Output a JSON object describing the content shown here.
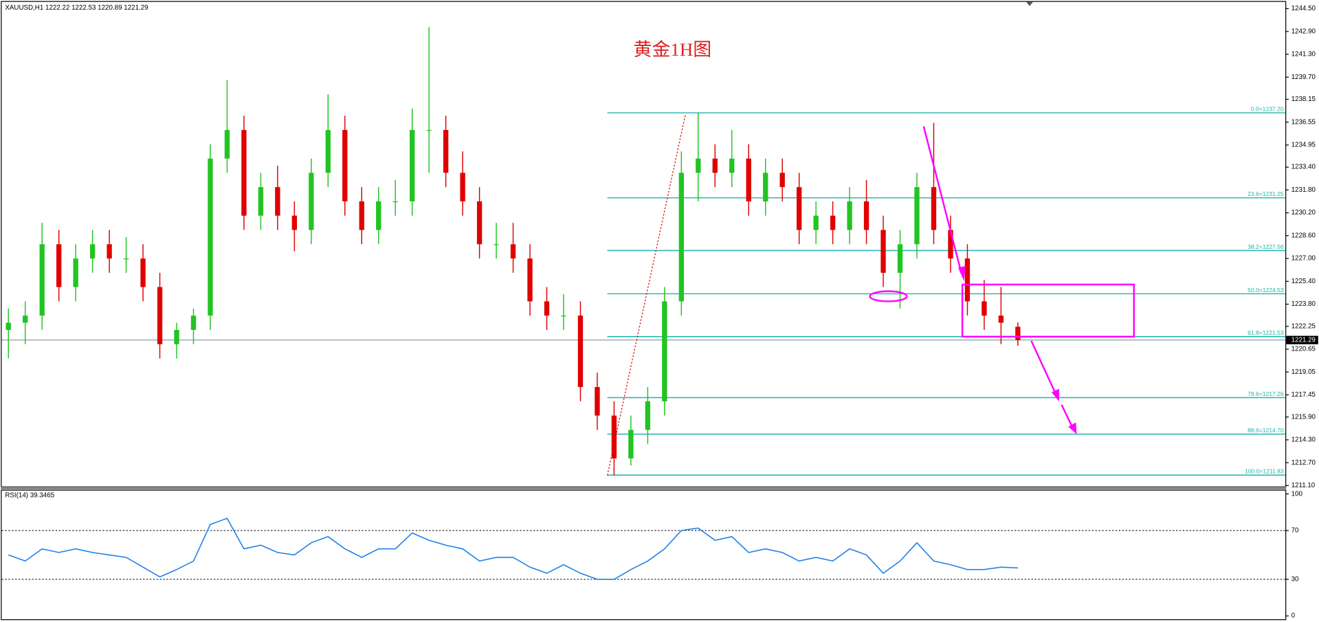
{
  "chart_data": [
    {
      "type": "candlestick",
      "header": "XAUUSD,H1  1222.22 1222.53 1220.89 1221.29",
      "title": "黄金1H图",
      "up_color": "#22c422",
      "down_color": "#e00000",
      "open": [
        1222.0,
        1222.5,
        1223,
        1228,
        1225,
        1227,
        1228,
        1227,
        1227,
        1225,
        1221,
        1222,
        1223,
        1234,
        1236,
        1230,
        1232,
        1230,
        1229,
        1233,
        1236,
        1231,
        1229,
        1231,
        1231,
        1236,
        1236,
        1233,
        1231,
        1228,
        1228,
        1227,
        1224,
        1223,
        1223,
        1218,
        1216,
        1213,
        1215,
        1217,
        1224,
        1233,
        1234,
        1233,
        1234,
        1231,
        1233,
        1232,
        1229,
        1230,
        1229,
        1231,
        1229,
        1226,
        1228,
        1232,
        1229,
        1227,
        1224,
        1223,
        1222.22
      ],
      "high": [
        1223.5,
        1224,
        1229.5,
        1229,
        1228,
        1229,
        1229,
        1228.5,
        1228,
        1226,
        1222.5,
        1223.5,
        1235,
        1239.5,
        1237,
        1233,
        1233.5,
        1231,
        1234,
        1238.5,
        1237,
        1232,
        1232,
        1232.5,
        1237.5,
        1243.2,
        1237,
        1234.5,
        1232,
        1229.5,
        1229.5,
        1228,
        1225,
        1224.5,
        1224,
        1219,
        1217,
        1216,
        1218,
        1225,
        1234.5,
        1237.2,
        1235,
        1236,
        1235,
        1234,
        1234,
        1233,
        1231,
        1231,
        1232,
        1232.5,
        1230,
        1229,
        1233,
        1236.5,
        1230,
        1228,
        1225.5,
        1225,
        1222.53
      ],
      "low": [
        1220,
        1221,
        1222,
        1224,
        1224,
        1226,
        1226,
        1226,
        1224,
        1220,
        1220,
        1221,
        1222,
        1233,
        1229,
        1229,
        1229,
        1227.5,
        1228,
        1232,
        1230,
        1228,
        1228,
        1230,
        1230,
        1233,
        1232,
        1230,
        1227,
        1227,
        1226,
        1223,
        1222,
        1222,
        1217,
        1215,
        1211.83,
        1212.5,
        1214,
        1216,
        1223,
        1231,
        1232,
        1232,
        1230,
        1230,
        1231,
        1228,
        1228,
        1228,
        1228,
        1228,
        1225,
        1223.5,
        1227,
        1228,
        1226,
        1223,
        1222,
        1221,
        1220.89
      ],
      "close": [
        1222.5,
        1223,
        1228,
        1225,
        1227,
        1228,
        1227,
        1227,
        1225,
        1221,
        1222,
        1223,
        1234,
        1236,
        1230,
        1232,
        1230,
        1229,
        1233,
        1236,
        1231,
        1229,
        1231,
        1231,
        1236,
        1236,
        1233,
        1231,
        1228,
        1228,
        1227,
        1224,
        1223,
        1223,
        1218,
        1216,
        1213,
        1215,
        1217,
        1224,
        1233,
        1234,
        1233,
        1234,
        1231,
        1233,
        1232,
        1229,
        1230,
        1229,
        1231,
        1229,
        1226,
        1228,
        1232,
        1229,
        1227,
        1224,
        1223,
        1222.5,
        1221.29
      ],
      "current_price": 1221.29,
      "ylim": [
        1211.1,
        1244.5
      ],
      "yticks": [
        {
          "value": 1244.5,
          "label": "1244.50"
        },
        {
          "value": 1242.9,
          "label": "1242.90"
        },
        {
          "value": 1241.3,
          "label": "1241.30"
        },
        {
          "value": 1239.7,
          "label": "1239.70"
        },
        {
          "value": 1238.15,
          "label": "1238.15"
        },
        {
          "value": 1236.55,
          "label": "1236.55"
        },
        {
          "value": 1234.95,
          "label": "1234.95"
        },
        {
          "value": 1233.4,
          "label": "1233.40"
        },
        {
          "value": 1231.8,
          "label": "1231.80"
        },
        {
          "value": 1230.2,
          "label": "1230.20"
        },
        {
          "value": 1228.6,
          "label": "1228.60"
        },
        {
          "value": 1227,
          "label": "1227.00"
        },
        {
          "value": 1225.4,
          "label": "1225.40"
        },
        {
          "value": 1223.8,
          "label": "1223.80"
        },
        {
          "value": 1222.25,
          "label": "1222.25"
        },
        {
          "value": 1220.65,
          "label": "1220.65"
        },
        {
          "value": 1219.05,
          "label": "1219.05"
        },
        {
          "value": 1217.45,
          "label": "1217.45"
        },
        {
          "value": 1215.9,
          "label": "1215.90"
        },
        {
          "value": 1214.3,
          "label": "1214.30"
        },
        {
          "value": 1212.7,
          "label": "1212.70"
        },
        {
          "value": 1211.1,
          "label": "1211.10"
        }
      ],
      "fib_levels": [
        {
          "value": 1237.2,
          "label": "0.0=1237.20"
        },
        {
          "value": 1231.25,
          "label": "23.6=1231.25"
        },
        {
          "value": 1227.56,
          "label": "38.2=1227.56"
        },
        {
          "value": 1224.53,
          "label": "50.0=1224.53"
        },
        {
          "value": 1221.53,
          "label": "61.8=1221.53"
        },
        {
          "value": 1217.26,
          "label": "78.6=1217.26"
        },
        {
          "value": 1214.7,
          "label": "88.6=1214.70"
        },
        {
          "value": 1211.83,
          "label": "100.0=1211.83"
        }
      ],
      "fib_color": "#20b2aa"
    },
    {
      "type": "line",
      "label": "RSI(14) 39.3465",
      "color": "#1e82e6",
      "values": [
        50,
        45,
        55,
        52,
        55,
        52,
        50,
        48,
        40,
        32,
        38,
        45,
        75,
        80,
        55,
        58,
        52,
        50,
        60,
        65,
        55,
        48,
        55,
        55,
        68,
        62,
        58,
        55,
        45,
        48,
        48,
        40,
        35,
        42,
        35,
        30,
        30,
        38,
        45,
        55,
        70,
        72,
        62,
        65,
        52,
        55,
        52,
        45,
        48,
        45,
        55,
        50,
        35,
        45,
        60,
        45,
        42,
        38,
        38,
        40,
        39.3465
      ],
      "ylim": [
        0,
        100
      ],
      "yticks": [
        0,
        30,
        70,
        100
      ]
    }
  ]
}
